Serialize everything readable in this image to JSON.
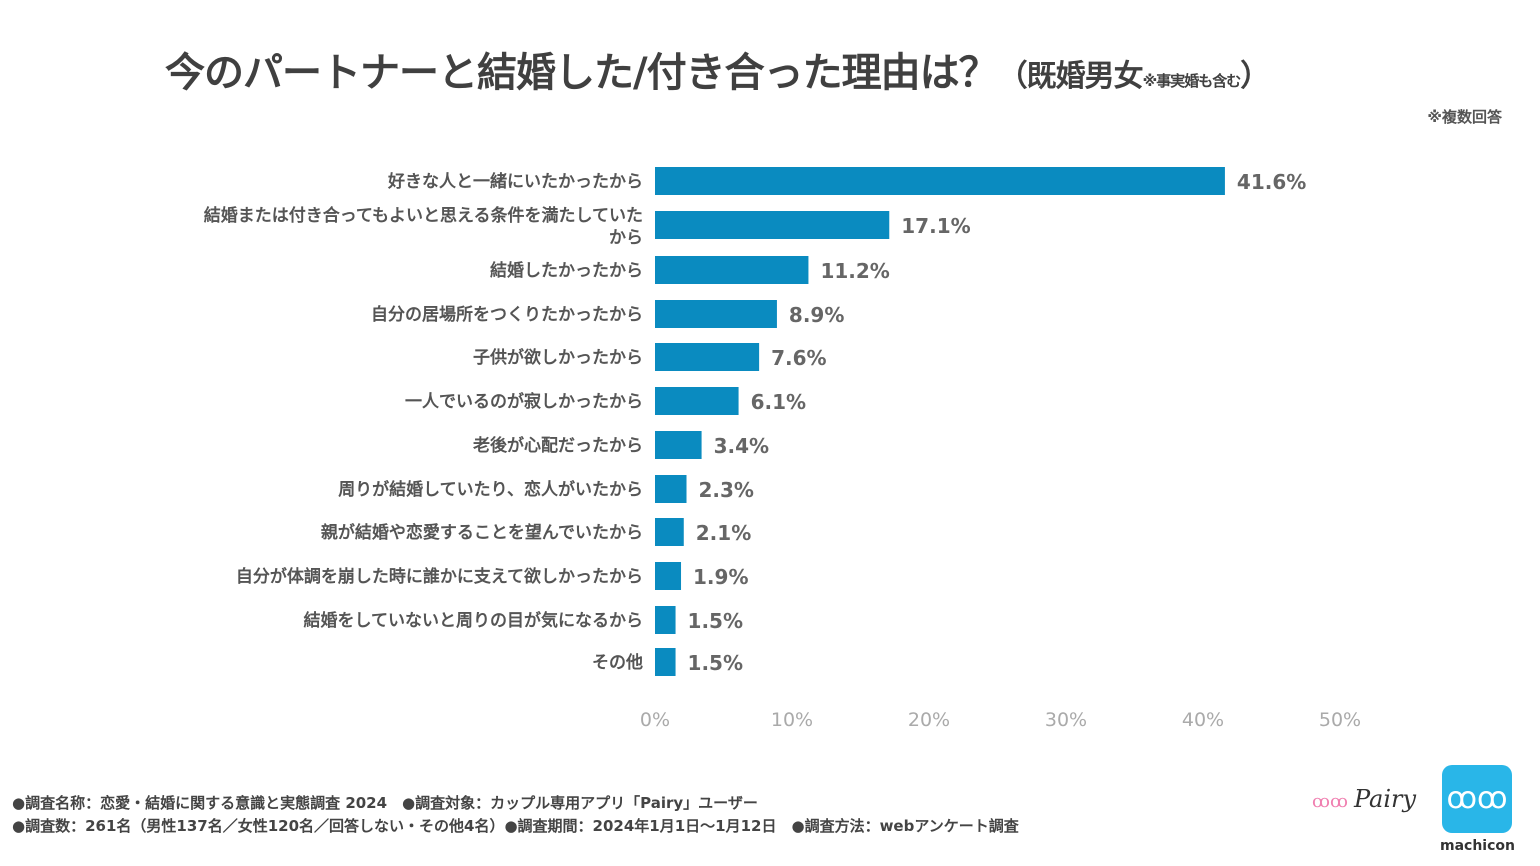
{
  "header": {
    "title": "今のパートナーと結婚した/付き合った理由は？",
    "subtitle_open": "（既婚男女",
    "subtitle_note": "※事実婚も含む",
    "subtitle_close": "）",
    "multiple_answer_note": "※複数回答"
  },
  "chart_data": {
    "type": "bar",
    "orientation": "horizontal",
    "categories": [
      "好きな人と一緒にいたかったから",
      "結婚または付き合ってもよいと思える条件を満たしていたから",
      "結婚したかったから",
      "自分の居場所をつくりたかったから",
      "子供が欲しかったから",
      "一人でいるのが寂しかったから",
      "老後が心配だったから",
      "周りが結婚していたり、恋人がいたから",
      "親が結婚や恋愛することを望んでいたから",
      "自分が体調を崩した時に誰かに支えて欲しかったから",
      "結婚をしていないと周りの目が気になるから",
      "その他"
    ],
    "values": [
      41.6,
      17.1,
      11.2,
      8.9,
      7.6,
      6.1,
      3.4,
      2.3,
      2.1,
      1.9,
      1.5,
      1.5
    ],
    "data_labels": [
      "41.6%",
      "17.1%",
      "11.2%",
      "8.9%",
      "7.6%",
      "6.1%",
      "3.4%",
      "2.3%",
      "2.1%",
      "1.9%",
      "1.5%",
      "1.5%"
    ],
    "xlim": [
      0,
      50
    ],
    "x_ticks": [
      "0%",
      "10%",
      "20%",
      "30%",
      "40%",
      "50%"
    ],
    "grid": false,
    "bar_color": "#0a8bc0"
  },
  "footer": {
    "line1": "●調査名称：恋愛・結婚に関する意識と実態調査 2024　●調査対象：カップル専用アプリ「Pairy」ユーザー",
    "line2": "●調査数：261名（男性137名／女性120名／回答しない・その他4名）●調査期間：2024年1月1日～1月12日　●調査方法：webアンケート調査"
  },
  "logos": {
    "pairy": "Pairy",
    "machicon": "machicon"
  }
}
